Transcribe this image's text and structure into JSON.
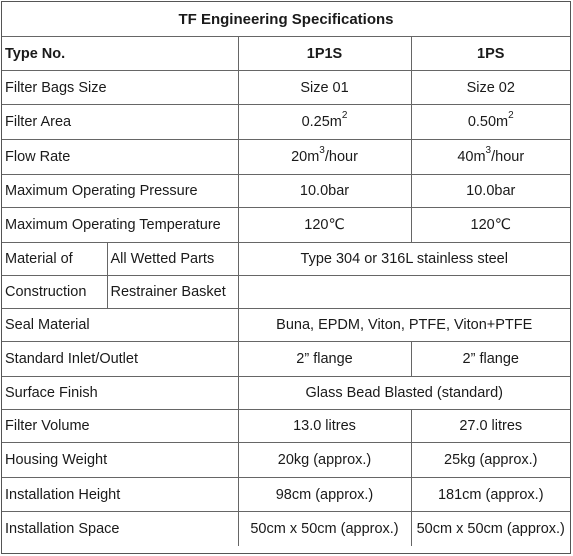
{
  "title": "TF Engineering Specifications",
  "header": {
    "label": "Type No.",
    "col1": "1P1S",
    "col2": "1PS"
  },
  "rows": {
    "filter_bags_size": {
      "label": "Filter Bags Size",
      "v1": "Size 01",
      "v2": "Size 02"
    },
    "filter_area": {
      "label": "Filter Area",
      "v1": "0.25m",
      "v2": "0.50m",
      "sup": "2"
    },
    "flow_rate": {
      "label": "Flow Rate",
      "v1_pre": "20m",
      "v2_pre": "40m",
      "sup": "3",
      "post": "/hour"
    },
    "max_pressure": {
      "label": "Maximum Operating Pressure",
      "v1": "10.0bar",
      "v2": "10.0bar"
    },
    "max_temperature": {
      "label": "Maximum Operating Temperature",
      "v1": "120℃",
      "v2": "120℃"
    },
    "material": {
      "label_a": "Material of",
      "label_b": "Construction",
      "sub1": "All Wetted Parts",
      "sub2": "Restrainer Basket",
      "v_wetted": "Type 304 or 316L stainless steel",
      "v_basket": ""
    },
    "seal_material": {
      "label": "Seal Material",
      "v": "Buna, EPDM, Viton, PTFE, Viton+PTFE"
    },
    "inlet_outlet": {
      "label": "Standard Inlet/Outlet",
      "v1": "2” flange",
      "v2": "2” flange"
    },
    "surface_finish": {
      "label": "Surface Finish",
      "v": "Glass Bead Blasted (standard)"
    },
    "filter_volume": {
      "label": "Filter Volume",
      "v1": "13.0 litres",
      "v2": "27.0 litres"
    },
    "housing_weight": {
      "label": "Housing Weight",
      "v1": "20kg (approx.)",
      "v2": "25kg (approx.)"
    },
    "installation_height": {
      "label": "Installation Height",
      "v1": "98cm (approx.)",
      "v2": "181cm (approx.)"
    },
    "installation_space": {
      "label": "Installation Space",
      "v1": "50cm x 50cm (approx.)",
      "v2": "50cm x 50cm (approx.)"
    }
  }
}
